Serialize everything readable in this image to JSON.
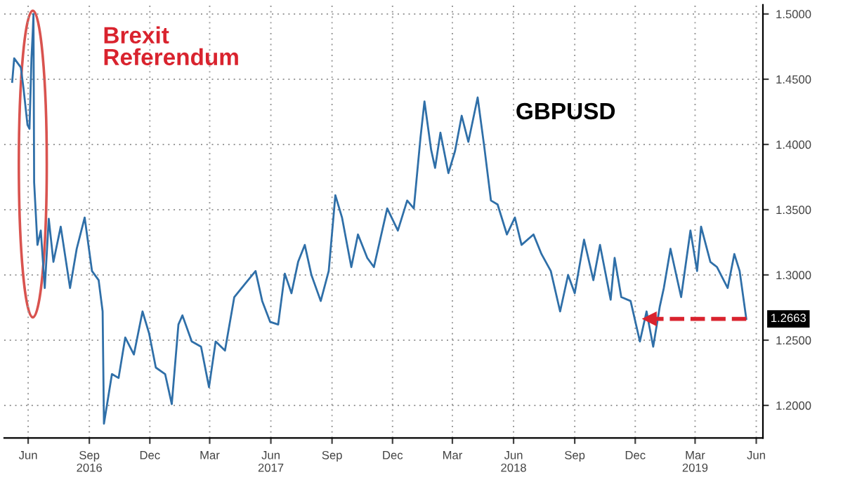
{
  "chart_data": {
    "type": "line",
    "annotations": [
      "Brexit\nReferendum",
      "GBPUSD",
      {
        "text": "1.2663",
        "x": "2019-05-31",
        "y": 1.2663
      }
    ],
    "xlim": [
      "2016-05-10",
      "2019-06-25"
    ],
    "ylim": [
      1.175,
      1.507
    ],
    "xticks": [
      {
        "value": "2016-06-15",
        "label": "Jun"
      },
      {
        "value": "2016-09-15",
        "label": "Sep\n2016"
      },
      {
        "value": "2016-12-15",
        "label": "Dec"
      },
      {
        "value": "2017-03-15",
        "label": "Mar"
      },
      {
        "value": "2017-06-15",
        "label": "Jun\n2017"
      },
      {
        "value": "2017-09-15",
        "label": "Sep"
      },
      {
        "value": "2017-12-15",
        "label": "Dec"
      },
      {
        "value": "2018-03-15",
        "label": "Mar"
      },
      {
        "value": "2018-06-15",
        "label": "Jun\n2018"
      },
      {
        "value": "2018-09-15",
        "label": "Sep"
      },
      {
        "value": "2018-12-15",
        "label": "Dec"
      },
      {
        "value": "2019-03-15",
        "label": "Mar\n2019"
      },
      {
        "value": "2019-06-15",
        "label": "Jun"
      }
    ],
    "yticks": [
      {
        "value": 1.2,
        "label": "1.2000"
      },
      {
        "value": 1.25,
        "label": "1.2500"
      },
      {
        "value": 1.3,
        "label": "1.3000"
      },
      {
        "value": 1.35,
        "label": "1.3500"
      },
      {
        "value": 1.4,
        "label": "1.4000"
      },
      {
        "value": 1.45,
        "label": "1.4500"
      },
      {
        "value": 1.5,
        "label": "1.5000"
      }
    ],
    "grid": true,
    "marker": "none",
    "line_style": "solid",
    "x": [
      "2016-05-22",
      "2016-05-25",
      "2016-06-04",
      "2016-06-08",
      "2016-06-14",
      "2016-06-17",
      "2016-06-20",
      "2016-06-22",
      "2016-06-23",
      "2016-06-24",
      "2016-06-29",
      "2016-07-04",
      "2016-07-10",
      "2016-07-16",
      "2016-07-23",
      "2016-08-03",
      "2016-08-17",
      "2016-08-27",
      "2016-09-08",
      "2016-09-19",
      "2016-09-29",
      "2016-10-05",
      "2016-10-07",
      "2016-10-19",
      "2016-10-29",
      "2016-11-08",
      "2016-11-21",
      "2016-12-04",
      "2016-12-14",
      "2016-12-24",
      "2017-01-07",
      "2017-01-17",
      "2017-01-27",
      "2017-02-02",
      "2017-02-16",
      "2017-03-02",
      "2017-03-14",
      "2017-03-24",
      "2017-04-07",
      "2017-04-21",
      "2017-05-07",
      "2017-05-23",
      "2017-06-02",
      "2017-06-14",
      "2017-06-26",
      "2017-07-06",
      "2017-07-16",
      "2017-07-26",
      "2017-08-05",
      "2017-08-15",
      "2017-08-29",
      "2017-09-10",
      "2017-09-20",
      "2017-09-30",
      "2017-10-14",
      "2017-10-24",
      "2017-11-07",
      "2017-11-17",
      "2017-12-07",
      "2017-12-23",
      "2018-01-06",
      "2018-01-16",
      "2018-01-26",
      "2018-02-01",
      "2018-02-11",
      "2018-02-17",
      "2018-02-25",
      "2018-03-09",
      "2018-03-19",
      "2018-03-29",
      "2018-04-08",
      "2018-04-22",
      "2018-05-02",
      "2018-05-12",
      "2018-05-22",
      "2018-06-05",
      "2018-06-17",
      "2018-06-27",
      "2018-07-15",
      "2018-07-27",
      "2018-08-10",
      "2018-08-24",
      "2018-09-05",
      "2018-09-15",
      "2018-09-29",
      "2018-10-13",
      "2018-10-23",
      "2018-11-08",
      "2018-11-14",
      "2018-11-24",
      "2018-12-08",
      "2018-12-22",
      "2019-01-01",
      "2019-01-11",
      "2019-01-21",
      "2019-01-27",
      "2019-02-06",
      "2019-02-22",
      "2019-03-08",
      "2019-03-18",
      "2019-03-24",
      "2019-04-07",
      "2019-04-17",
      "2019-05-03",
      "2019-05-13",
      "2019-05-21",
      "2019-05-31"
    ],
    "series": [
      {
        "color": "#2f6fa8",
        "values": [
          1.448,
          1.466,
          1.459,
          1.443,
          1.415,
          1.412,
          1.466,
          1.487,
          1.5,
          1.371,
          1.323,
          1.334,
          1.29,
          1.343,
          1.31,
          1.337,
          1.29,
          1.32,
          1.344,
          1.303,
          1.296,
          1.272,
          1.186,
          1.224,
          1.221,
          1.252,
          1.239,
          1.272,
          1.255,
          1.229,
          1.224,
          1.201,
          1.262,
          1.269,
          1.249,
          1.245,
          1.214,
          1.249,
          1.242,
          1.283,
          1.293,
          1.303,
          1.28,
          1.264,
          1.262,
          1.301,
          1.286,
          1.31,
          1.323,
          1.3,
          1.28,
          1.303,
          1.361,
          1.344,
          1.306,
          1.331,
          1.313,
          1.306,
          1.351,
          1.334,
          1.357,
          1.351,
          1.405,
          1.433,
          1.396,
          1.382,
          1.409,
          1.378,
          1.395,
          1.422,
          1.402,
          1.436,
          1.398,
          1.357,
          1.354,
          1.331,
          1.344,
          1.323,
          1.331,
          1.316,
          1.303,
          1.272,
          1.3,
          1.286,
          1.327,
          1.296,
          1.323,
          1.281,
          1.313,
          1.283,
          1.28,
          1.249,
          1.272,
          1.245,
          1.276,
          1.29,
          1.32,
          1.283,
          1.334,
          1.303,
          1.337,
          1.31,
          1.306,
          1.29,
          1.316,
          1.303,
          1.2663
        ]
      }
    ]
  }
}
